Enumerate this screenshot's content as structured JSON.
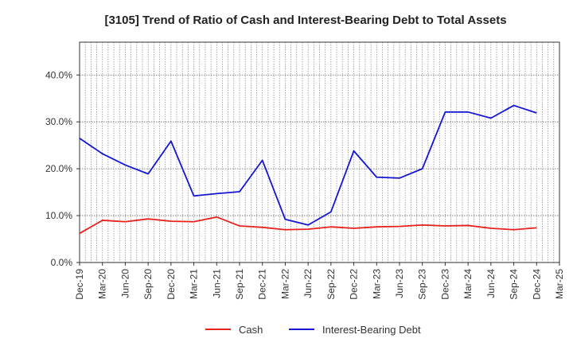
{
  "chart_data": {
    "type": "line",
    "title": "[3105]  Trend of Ratio of Cash and Interest-Bearing Debt to Total Assets",
    "xlabel": "",
    "ylabel": "",
    "categories": [
      "Dec-19",
      "Mar-20",
      "Jun-20",
      "Sep-20",
      "Dec-20",
      "Mar-21",
      "Jun-21",
      "Sep-21",
      "Dec-21",
      "Mar-22",
      "Jun-22",
      "Sep-22",
      "Dec-22",
      "Mar-23",
      "Jun-23",
      "Sep-23",
      "Dec-23",
      "Mar-24",
      "Jun-24",
      "Sep-24",
      "Dec-24",
      "Mar-25"
    ],
    "ylim": [
      0,
      47
    ],
    "yticks": [
      0,
      10,
      20,
      30,
      40
    ],
    "ytick_labels": [
      "0.0%",
      "10.0%",
      "20.0%",
      "30.0%",
      "40.0%"
    ],
    "grid": true,
    "legend_position": "bottom-center",
    "series": [
      {
        "name": "Cash",
        "color": "#e8211d",
        "values": [
          6.2,
          9.0,
          8.7,
          9.3,
          8.8,
          8.7,
          9.7,
          7.8,
          7.5,
          7.0,
          7.1,
          7.6,
          7.3,
          7.6,
          7.7,
          8.0,
          7.8,
          7.9,
          7.3,
          7.0,
          7.4,
          null
        ]
      },
      {
        "name": "Interest-Bearing Debt",
        "color": "#1515d6",
        "values": [
          26.5,
          23.2,
          20.8,
          18.9,
          25.9,
          14.2,
          14.7,
          15.1,
          21.8,
          9.2,
          8.0,
          10.8,
          23.8,
          18.2,
          18.0,
          20.0,
          32.1,
          32.1,
          30.8,
          33.5,
          31.9,
          null
        ]
      }
    ]
  }
}
